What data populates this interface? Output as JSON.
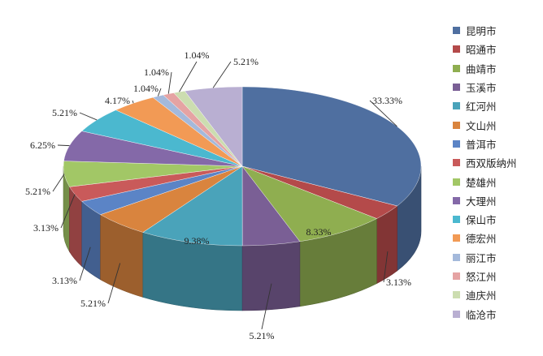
{
  "chart_data": {
    "type": "pie",
    "style": "3d-pie",
    "legend_position": "right",
    "slices": [
      {
        "name": "昆明市",
        "value": 33.33,
        "label": "33.33%",
        "color": "#4F6FA0"
      },
      {
        "name": "昭通市",
        "value": 3.13,
        "label": "3.13%",
        "color": "#B44A4A"
      },
      {
        "name": "曲靖市",
        "value": 8.33,
        "label": "8.33%",
        "color": "#8FAE50"
      },
      {
        "name": "玉溪市",
        "value": 5.21,
        "label": "5.21%",
        "color": "#7A5F95"
      },
      {
        "name": "红河州",
        "value": 9.38,
        "label": "9.38%",
        "color": "#4AA3BA"
      },
      {
        "name": "文山州",
        "value": 5.21,
        "label": "5.21%",
        "color": "#D9843E"
      },
      {
        "name": "普洱市",
        "value": 3.13,
        "label": "3.13%",
        "color": "#5B84C6"
      },
      {
        "name": "西双版纳州",
        "value": 3.13,
        "label": "3.13%",
        "color": "#C95A5A"
      },
      {
        "name": "楚雄州",
        "value": 5.21,
        "label": "5.21%",
        "color": "#A2C766"
      },
      {
        "name": "大理州",
        "value": 6.25,
        "label": "6.25%",
        "color": "#8469A8"
      },
      {
        "name": "保山市",
        "value": 5.21,
        "label": "5.21%",
        "color": "#4BB8CF"
      },
      {
        "name": "德宏州",
        "value": 4.17,
        "label": "4.17%",
        "color": "#F29A55"
      },
      {
        "name": "丽江市",
        "value": 1.04,
        "label": "1.04%",
        "color": "#A4B9DB"
      },
      {
        "name": "怒江州",
        "value": 1.04,
        "label": "1.04%",
        "color": "#E5A3A3"
      },
      {
        "name": "迪庆州",
        "value": 1.04,
        "label": "1.04%",
        "color": "#CCDDB0"
      },
      {
        "name": "临沧市",
        "value": 5.21,
        "label": "5.21%",
        "color": "#B9AFD2"
      }
    ]
  }
}
